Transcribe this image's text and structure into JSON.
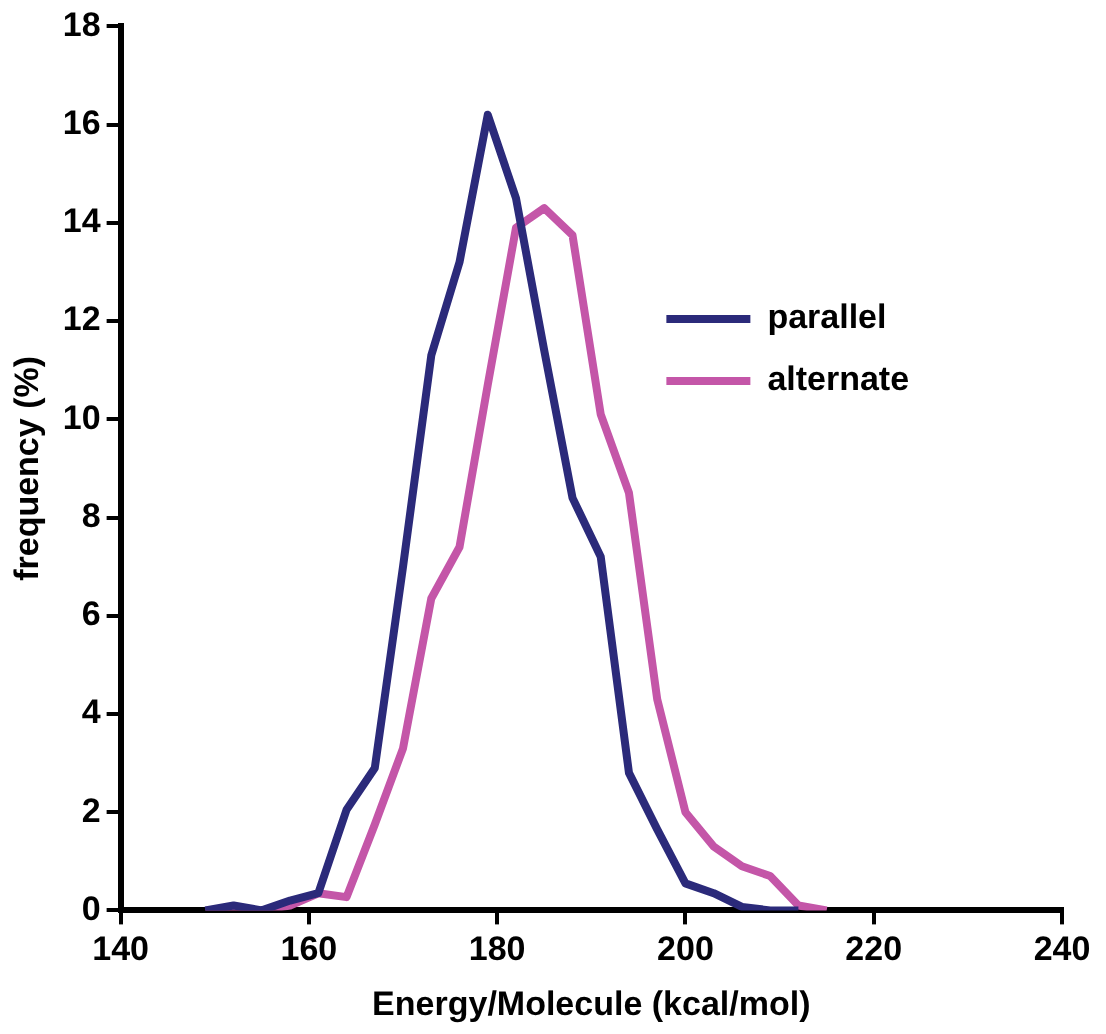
{
  "chart_data": {
    "type": "line",
    "xlabel": "Energy/Molecule (kcal/mol)",
    "ylabel": "frequency (%)",
    "x": [
      149,
      152,
      155,
      158,
      161,
      164,
      167,
      170,
      173,
      176,
      179,
      182,
      185,
      188,
      191,
      194,
      197,
      200,
      203,
      206,
      209,
      212,
      215
    ],
    "series": [
      {
        "name": "parallel",
        "color": "#2b2a7a",
        "values": [
          0,
          0.1,
          0,
          0.2,
          0.35,
          2.05,
          2.9,
          7.0,
          11.3,
          13.2,
          16.2,
          14.5,
          11.4,
          8.4,
          7.2,
          2.8,
          1.65,
          0.55,
          0.35,
          0.07,
          0,
          0,
          null
        ]
      },
      {
        "name": "alternate",
        "color": "#c456a8",
        "values": [
          0,
          0,
          0,
          0.1,
          0.35,
          0.27,
          1.75,
          3.3,
          6.35,
          7.4,
          10.7,
          13.9,
          14.3,
          13.75,
          10.1,
          8.5,
          4.3,
          2.0,
          1.3,
          0.9,
          0.7,
          0.1,
          0
        ]
      }
    ],
    "xlim": [
      140,
      240
    ],
    "xticks": [
      140,
      160,
      180,
      200,
      220,
      240
    ],
    "ylim": [
      0,
      18
    ],
    "yticks": [
      0,
      2,
      4,
      6,
      8,
      10,
      12,
      14,
      16,
      18
    ],
    "grid": false,
    "legend": "right",
    "marker": "none",
    "line_style": "solid"
  }
}
